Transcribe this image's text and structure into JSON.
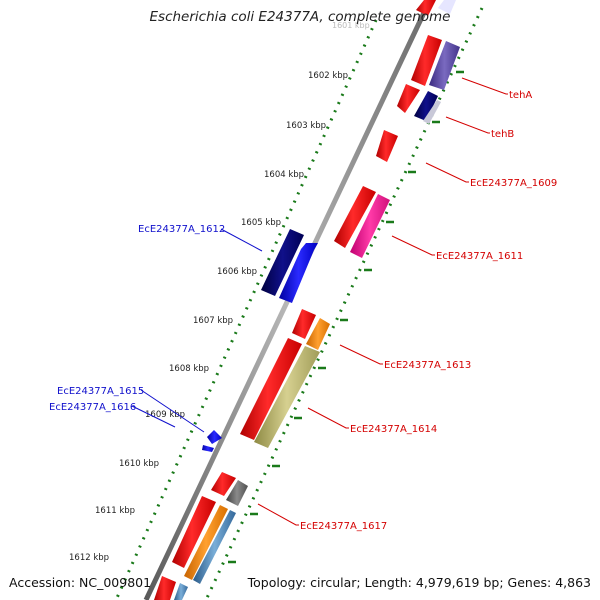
{
  "title": "Escherichia coli E24377A, complete genome",
  "accession": "Accession: NC_009801",
  "summary": "Topology: circular; Length: 4,979,619 bp; Genes: 4,863",
  "ticks": [
    "1602 kbp",
    "1603 kbp",
    "1604 kbp",
    "1605 kbp",
    "1606 kbp",
    "1607 kbp",
    "1608 kbp",
    "1609 kbp",
    "1610 kbp",
    "1611 kbp",
    "1612 kbp"
  ],
  "labels": {
    "tehA": "tehA",
    "tehB": "tehB",
    "g1609": "EcE24377A_1609",
    "g1611": "EcE24377A_1611",
    "g1612": "EcE24377A_1612",
    "g1613": "EcE24377A_1613",
    "g1614": "EcE24377A_1614",
    "g1615": "EcE24377A_1615",
    "g1616": "EcE24377A_1616",
    "g1617": "EcE24377A_1617"
  },
  "colors": {
    "backbone": "#7a7a7a",
    "ring_dots": "#1a7a1a",
    "cds_red": "#ff0000",
    "cds_blue": "#0000ff",
    "cds_navy": "#00006e",
    "cds_purple": "#5a4aa0",
    "cds_magenta": "#ff1493",
    "cds_orange": "#ff8c00",
    "cds_khaki": "#bdb76b",
    "cds_gray": "#666666",
    "cds_steelblue": "#4682b4",
    "label_red": "#d40000",
    "label_blue": "#1010cc"
  }
}
